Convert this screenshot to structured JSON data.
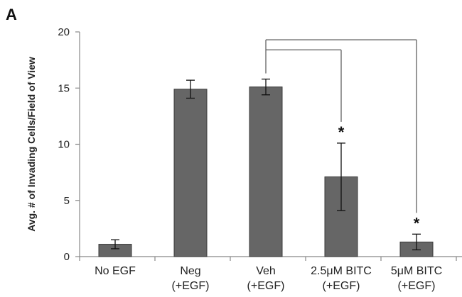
{
  "panel_label": "A",
  "chart_data": {
    "type": "bar",
    "title": "",
    "xlabel": "",
    "ylabel": "Avg. # of Invading Cells/Field of View",
    "ylim": [
      0,
      20
    ],
    "yticks": [
      0,
      5,
      10,
      15,
      20
    ],
    "categories": [
      [
        "No EGF"
      ],
      [
        "Neg",
        "(+EGF)"
      ],
      [
        "Veh",
        "(+EGF)"
      ],
      [
        "2.5μM BITC",
        "(+EGF)"
      ],
      [
        "5μM BITC",
        "(+EGF)"
      ]
    ],
    "values": [
      1.1,
      14.9,
      15.1,
      7.1,
      1.3
    ],
    "error": [
      0.4,
      0.8,
      0.7,
      3.0,
      0.7
    ],
    "significance": [
      "",
      "",
      "",
      "*",
      "*"
    ],
    "comparison_brackets": [
      {
        "from": 2,
        "to": 3
      },
      {
        "from": 2,
        "to": 4
      }
    ],
    "bar_color": "#666666",
    "grid": false,
    "legend": "none"
  }
}
